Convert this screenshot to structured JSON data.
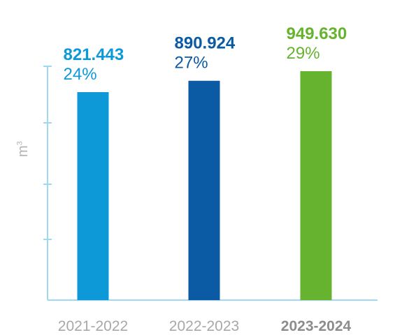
{
  "chart_data": {
    "type": "bar",
    "categories": [
      "2021-2022",
      "2022-2023",
      "2023-2024"
    ],
    "values": [
      821443,
      890924,
      949630
    ],
    "value_labels": [
      "821.443",
      "890.924",
      "949.630"
    ],
    "percent_labels": [
      "24%",
      "27%",
      "29%"
    ],
    "colors": [
      "#0d99d8",
      "#0a5aa4",
      "#65b32e"
    ],
    "highlight_category": "2023-2024",
    "ylabel": "m",
    "ylabel_superscript": "3",
    "axis_color": "#9fd8f2",
    "ylim": [
      0,
      1000000
    ],
    "title": "",
    "xlabel": ""
  }
}
